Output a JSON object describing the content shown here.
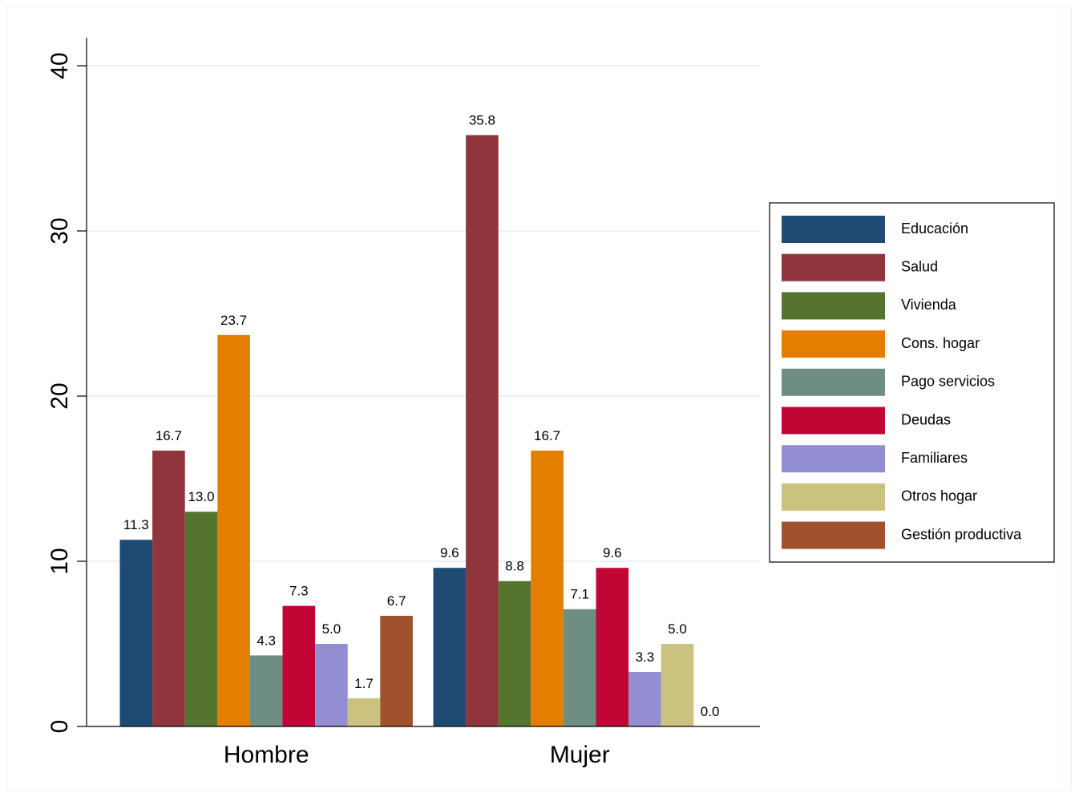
{
  "chart_data": {
    "type": "bar",
    "categories": [
      "Hombre",
      "Mujer"
    ],
    "series": [
      {
        "name": "Educación",
        "color": "#1f4a73",
        "values": [
          11.3,
          9.6
        ]
      },
      {
        "name": "Salud",
        "color": "#90353b",
        "values": [
          16.7,
          35.8
        ]
      },
      {
        "name": "Vivienda",
        "color": "#55752f",
        "values": [
          13.0,
          8.8
        ]
      },
      {
        "name": "Cons. hogar",
        "color": "#e37e00",
        "values": [
          23.7,
          16.7
        ]
      },
      {
        "name": "Pago servicios",
        "color": "#6e8e84",
        "values": [
          4.3,
          7.1
        ]
      },
      {
        "name": "Deudas",
        "color": "#c10534",
        "values": [
          7.3,
          9.6
        ]
      },
      {
        "name": "Familiares",
        "color": "#938dd2",
        "values": [
          5.0,
          3.3
        ]
      },
      {
        "name": "Otros hogar",
        "color": "#cac27e",
        "values": [
          1.7,
          5.0
        ]
      },
      {
        "name": "Gestión productiva",
        "color": "#a0522d",
        "values": [
          6.7,
          0.0
        ]
      }
    ],
    "title": "",
    "xlabel": "",
    "ylabel": "",
    "ylim": [
      0,
      40
    ],
    "yticks": [
      "0",
      "10",
      "20",
      "30",
      "40"
    ],
    "grid": true,
    "legend_position": "right"
  }
}
